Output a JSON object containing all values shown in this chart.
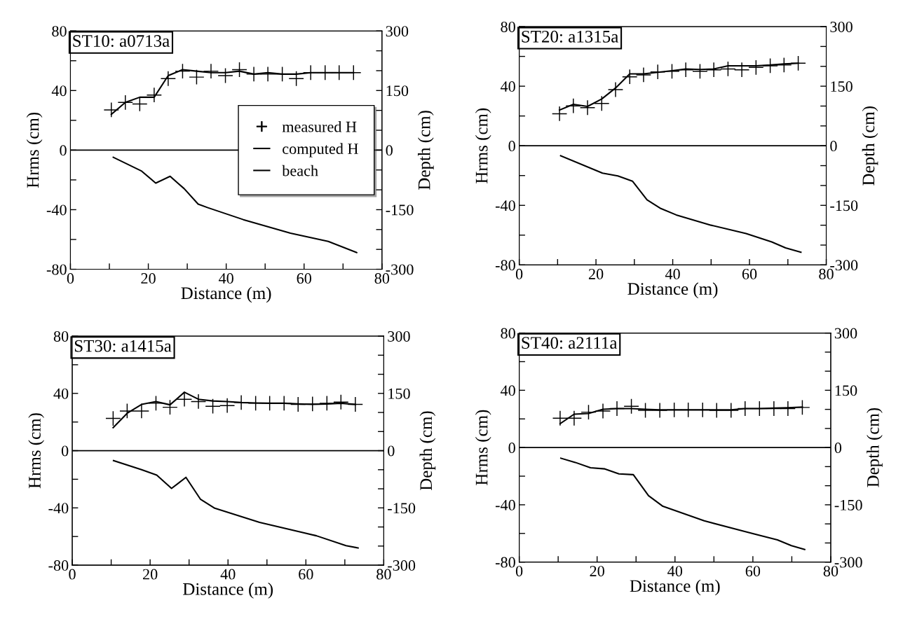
{
  "chart_data": [
    {
      "type": "line",
      "title": "ST10: a0713a",
      "xlabel": "Distance (m)",
      "ylabel": "Hrms (cm)",
      "y2label": "Depth (cm)",
      "legend": "center right",
      "grid": false,
      "xlim": [
        0,
        80
      ],
      "xticks": [
        0,
        {
          "value": 10,
          "label": null
        },
        20,
        {
          "value": 30,
          "label": null
        },
        40,
        {
          "value": 50,
          "label": null
        },
        60,
        {
          "value": 70,
          "label": null
        },
        80
      ],
      "ylim": [
        -80,
        80
      ],
      "yticks": [
        -80,
        {
          "value": -60,
          "label": null
        },
        -40,
        {
          "value": -20,
          "label": null
        },
        0,
        {
          "value": 20,
          "label": null
        },
        40,
        {
          "value": 60,
          "label": null
        },
        80
      ],
      "y2lim": [
        -300,
        300
      ],
      "y2ticks": [
        -300,
        {
          "value": -250,
          "label": null
        },
        {
          "value": -200,
          "label": null
        },
        -150,
        {
          "value": -100,
          "label": null
        },
        {
          "value": -50,
          "label": null
        },
        0,
        {
          "value": 50,
          "label": null
        },
        {
          "value": 100,
          "label": null
        },
        150,
        {
          "value": 200,
          "label": null
        },
        {
          "value": 250,
          "label": null
        },
        300
      ],
      "ref_lines": [
        {
          "axis": "y",
          "value": 0,
          "color": "#000000"
        }
      ],
      "series": [
        {
          "name": "measured H",
          "type": "scatter",
          "marker": "cross",
          "color": "#000000",
          "x": [
            10.5,
            14.1,
            17.8,
            21.5,
            25.1,
            28.8,
            32.4,
            36.1,
            39.8,
            43.4,
            47.1,
            50.7,
            54.4,
            58.0,
            61.7,
            65.4,
            69.0,
            72.7
          ],
          "values": [
            27,
            32,
            31,
            37,
            48,
            53,
            49,
            53,
            50,
            54,
            51,
            51,
            51,
            48,
            52,
            52,
            52,
            52
          ]
        },
        {
          "name": "computed H",
          "type": "line",
          "line_style": "solid",
          "color": "#000000",
          "x": [
            10.5,
            14.1,
            17.8,
            21.5,
            25.1,
            28.8,
            32.4,
            36.1,
            39.8,
            43.4,
            47.1,
            50.7,
            54.4,
            58.0,
            61.7,
            65.4,
            69.0,
            72.7
          ],
          "values": [
            24,
            32,
            35.5,
            35.5,
            50,
            54,
            53,
            52,
            52,
            53,
            51,
            52,
            51,
            51,
            52,
            52,
            52,
            52
          ]
        },
        {
          "name": "beach",
          "type": "line",
          "axis": "y2",
          "line_style": "solid",
          "color": "#000000",
          "x": [
            11,
            18.3,
            21.9,
            25.6,
            29.2,
            32.8,
            35.3,
            44.4,
            56.5,
            66.2,
            73.5
          ],
          "values": [
            -18,
            -53,
            -83,
            -66,
            -97,
            -136,
            -145,
            -175,
            -209,
            -230,
            -258
          ]
        }
      ]
    },
    {
      "type": "line",
      "title": "ST20: a1315a",
      "xlabel": "Distance (m)",
      "ylabel": "Hrms (cm)",
      "y2label": "Depth (cm)",
      "legend": false,
      "grid": false,
      "xlim": [
        0,
        80
      ],
      "xticks": [
        0,
        {
          "value": 10,
          "label": null
        },
        20,
        {
          "value": 30,
          "label": null
        },
        40,
        {
          "value": 50,
          "label": null
        },
        60,
        {
          "value": 70,
          "label": null
        },
        80
      ],
      "ylim": [
        -80,
        80
      ],
      "yticks": [
        -80,
        {
          "value": -60,
          "label": null
        },
        -40,
        {
          "value": -20,
          "label": null
        },
        0,
        {
          "value": 20,
          "label": null
        },
        40,
        {
          "value": 60,
          "label": null
        },
        80
      ],
      "y2lim": [
        -300,
        300
      ],
      "y2ticks": [
        -300,
        {
          "value": -250,
          "label": null
        },
        {
          "value": -200,
          "label": null
        },
        -150,
        {
          "value": -100,
          "label": null
        },
        {
          "value": -50,
          "label": null
        },
        0,
        {
          "value": 50,
          "label": null
        },
        {
          "value": 100,
          "label": null
        },
        150,
        {
          "value": 200,
          "label": null
        },
        {
          "value": 250,
          "label": null
        },
        300
      ],
      "ref_lines": [
        {
          "axis": "y",
          "value": 0,
          "color": "#000000"
        }
      ],
      "series": [
        {
          "type": "scatter",
          "marker": "cross",
          "color": "#000000",
          "x": [
            10.5,
            14.1,
            17.8,
            21.5,
            25.1,
            28.8,
            32.4,
            36.1,
            39.8,
            43.4,
            47.1,
            50.7,
            54.4,
            58.0,
            61.7,
            65.4,
            69.0,
            72.7
          ],
          "values": [
            21.5,
            26.8,
            25.6,
            28.4,
            37.7,
            46.3,
            47.6,
            49.6,
            50,
            51,
            50,
            51,
            51.6,
            51,
            52.6,
            53.7,
            54.2,
            55.4
          ]
        },
        {
          "type": "line",
          "line_style": "solid",
          "color": "#000000",
          "x": [
            10.5,
            14.1,
            17.8,
            21.5,
            25.1,
            28.8,
            32.4,
            36.1,
            39.8,
            43.4,
            47.1,
            50.7,
            54.4,
            58.0,
            61.7,
            65.4,
            69.0,
            72.7
          ],
          "values": [
            24,
            27.8,
            26.4,
            31.4,
            38.8,
            48.3,
            48.3,
            49.3,
            50.4,
            51.6,
            51.2,
            51.6,
            53.7,
            53.7,
            53.7,
            54.2,
            54.9,
            55.4
          ]
        },
        {
          "type": "line",
          "axis": "y2",
          "line_style": "solid",
          "color": "#000000",
          "x": [
            10.8,
            21.7,
            25.7,
            29.5,
            33.3,
            36.9,
            40.9,
            50,
            59.1,
            65.8,
            69.4,
            73.4
          ],
          "values": [
            -25,
            -69,
            -76,
            -89,
            -136,
            -158,
            -174,
            -200,
            -221,
            -242,
            -257,
            -268
          ]
        }
      ]
    },
    {
      "type": "line",
      "title": "ST30: a1415a",
      "xlabel": "Distance (m)",
      "ylabel": "Hrms (cm)",
      "y2label": "Depth (cm)",
      "legend": false,
      "grid": false,
      "xlim": [
        0,
        80
      ],
      "xticks": [
        0,
        {
          "value": 10,
          "label": null
        },
        20,
        {
          "value": 30,
          "label": null
        },
        40,
        {
          "value": 50,
          "label": null
        },
        60,
        {
          "value": 70,
          "label": null
        },
        80
      ],
      "ylim": [
        -80,
        80
      ],
      "yticks": [
        -80,
        {
          "value": -60,
          "label": null
        },
        -40,
        {
          "value": -20,
          "label": null
        },
        0,
        {
          "value": 20,
          "label": null
        },
        40,
        {
          "value": 60,
          "label": null
        },
        80
      ],
      "y2lim": [
        -300,
        300
      ],
      "y2ticks": [
        -300,
        {
          "value": -250,
          "label": null
        },
        {
          "value": -200,
          "label": null
        },
        -150,
        {
          "value": -100,
          "label": null
        },
        {
          "value": -50,
          "label": null
        },
        0,
        {
          "value": 50,
          "label": null
        },
        {
          "value": 100,
          "label": null
        },
        150,
        {
          "value": 200,
          "label": null
        },
        {
          "value": 250,
          "label": null
        },
        300
      ],
      "ref_lines": [
        {
          "axis": "y",
          "value": 0,
          "color": "#000000"
        }
      ],
      "series": [
        {
          "type": "scatter",
          "marker": "cross",
          "color": "#000000",
          "x": [
            10.5,
            14.1,
            17.8,
            21.5,
            25.1,
            28.8,
            32.4,
            36.1,
            39.8,
            43.4,
            47.1,
            50.7,
            54.4,
            58.0,
            61.7,
            65.4,
            69.0,
            72.7
          ],
          "values": [
            22.5,
            27.7,
            27.7,
            33.1,
            30.3,
            35.9,
            34.3,
            31,
            31.5,
            33.6,
            33.1,
            33.1,
            33.1,
            32.3,
            32.6,
            33.1,
            33.9,
            32.3
          ]
        },
        {
          "type": "line",
          "line_style": "solid",
          "color": "#000000",
          "x": [
            10.5,
            14.1,
            17.8,
            21.5,
            25.1,
            28.8,
            32.4,
            36.1,
            39.8,
            43.4,
            47.1,
            50.7,
            54.4,
            58.0,
            61.7,
            65.4,
            69.0,
            72.7
          ],
          "values": [
            16,
            26.1,
            32.3,
            34.3,
            32,
            40.8,
            35.9,
            34.7,
            34.3,
            33.6,
            33.3,
            33.1,
            33.1,
            32.6,
            32.3,
            32.6,
            33.1,
            32.3
          ]
        },
        {
          "type": "line",
          "axis": "y2",
          "line_style": "solid",
          "color": "#000000",
          "x": [
            10.6,
            17.8,
            21.7,
            25.5,
            29.2,
            32.9,
            36.6,
            48.1,
            62.7,
            70.3,
            73.4
          ],
          "values": [
            -26,
            -50,
            -64,
            -99,
            -70,
            -127,
            -151,
            -188,
            -223,
            -249,
            -255
          ]
        }
      ]
    },
    {
      "type": "line",
      "title": "ST40: a2111a",
      "xlabel": "Distance (m)",
      "ylabel": "Hrms (cm)",
      "y2label": "Depth (cm)",
      "legend": false,
      "grid": false,
      "xlim": [
        0,
        80
      ],
      "xticks": [
        0,
        {
          "value": 10,
          "label": null
        },
        20,
        {
          "value": 30,
          "label": null
        },
        40,
        {
          "value": 50,
          "label": null
        },
        60,
        {
          "value": 70,
          "label": null
        },
        80
      ],
      "ylim": [
        -80,
        80
      ],
      "yticks": [
        -80,
        {
          "value": -60,
          "label": null
        },
        -40,
        {
          "value": -20,
          "label": null
        },
        0,
        {
          "value": 20,
          "label": null
        },
        40,
        {
          "value": 60,
          "label": null
        },
        80
      ],
      "y2lim": [
        -300,
        300
      ],
      "y2ticks": [
        -300,
        {
          "value": -250,
          "label": null
        },
        {
          "value": -200,
          "label": null
        },
        -150,
        {
          "value": -100,
          "label": null
        },
        {
          "value": -50,
          "label": null
        },
        0,
        {
          "value": 50,
          "label": null
        },
        {
          "value": 100,
          "label": null
        },
        150,
        {
          "value": 200,
          "label": null
        },
        {
          "value": 250,
          "label": null
        },
        300
      ],
      "ref_lines": [
        {
          "axis": "y",
          "value": 0,
          "color": "#000000"
        }
      ],
      "series": [
        {
          "type": "scatter",
          "marker": "cross",
          "color": "#000000",
          "x": [
            10.5,
            14.1,
            17.8,
            21.5,
            25.1,
            28.8,
            32.4,
            36.1,
            39.8,
            43.4,
            47.1,
            50.7,
            54.4,
            58.0,
            61.7,
            65.4,
            69.0,
            72.7
          ],
          "values": [
            20.5,
            20.5,
            24.7,
            25.5,
            27.2,
            28.8,
            26,
            26,
            26.3,
            26.3,
            26.3,
            26,
            26,
            27.2,
            27.2,
            27.2,
            27.2,
            28
          ]
        },
        {
          "type": "line",
          "line_style": "solid",
          "color": "#000000",
          "x": [
            10.5,
            14.1,
            17.8,
            21.5,
            25.1,
            28.8,
            32.4,
            36.1,
            39.8,
            43.4,
            47.1,
            50.7,
            54.4,
            58.0,
            61.7,
            65.4,
            69.0,
            72.7
          ],
          "values": [
            16.7,
            23.3,
            23.8,
            26.7,
            27.2,
            27.2,
            26.7,
            26.3,
            26.3,
            26.3,
            26.3,
            26.3,
            26.3,
            27.2,
            27.2,
            27.5,
            27.8,
            28.3
          ]
        },
        {
          "type": "line",
          "axis": "y2",
          "line_style": "solid",
          "color": "#000000",
          "x": [
            10.7,
            14.4,
            18.3,
            22,
            25.6,
            29.3,
            33.2,
            36.9,
            47.5,
            57.9,
            66.3,
            69.9,
            73.3
          ],
          "values": [
            -28,
            -39,
            -53,
            -56,
            -69,
            -71,
            -126,
            -154,
            -192,
            -220,
            -242,
            -257,
            -267
          ]
        }
      ]
    }
  ]
}
